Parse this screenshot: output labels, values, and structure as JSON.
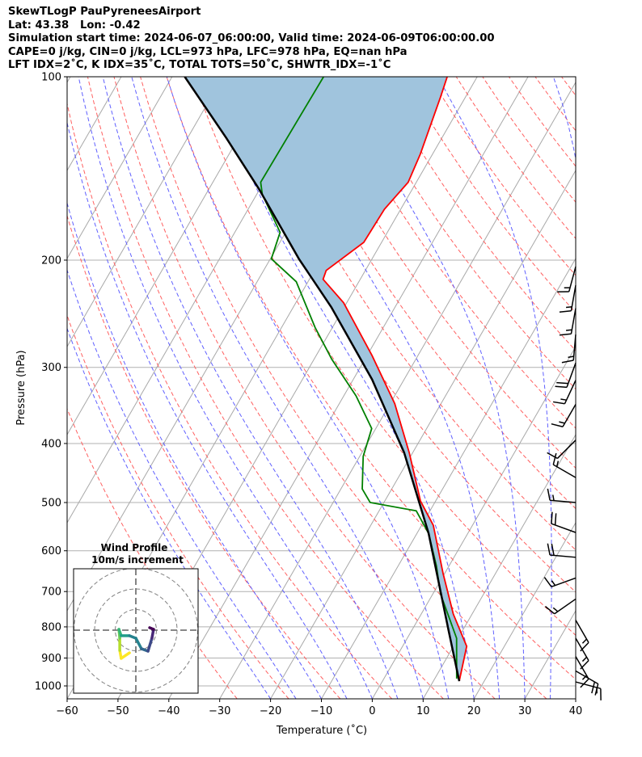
{
  "header": {
    "line1": "SkewTLogP PauPyreneesAirport",
    "line2": "Lat: 43.38   Lon: -0.42",
    "line3": "Simulation start time: 2024-06-07_06:00:00, Valid time: 2024-06-09T06:00:00.00",
    "line4": "CAPE=0 j/kg, CIN=0 j/kg, LCL=973 hPa, LFC=978 hPa, EQ=nan hPa",
    "line5": "LFT IDX=2˚C, K IDX=35˚C, TOTAL TOTS=50˚C, SHWTR_IDX=-1˚C"
  },
  "chart_data": {
    "type": "line",
    "title": "SkewTLogP PauPyreneesAirport",
    "xlabel": "Temperature (˚C)",
    "ylabel": "Pressure (hPa)",
    "xlim": [
      -60,
      40
    ],
    "ylim": [
      1050,
      100
    ],
    "xticks": [
      "−60",
      "−50",
      "−40",
      "−30",
      "−20",
      "−10",
      "0",
      "10",
      "20",
      "30",
      "40"
    ],
    "xtick_values": [
      -60,
      -50,
      -40,
      -30,
      -20,
      -10,
      0,
      10,
      20,
      30,
      40
    ],
    "yticks": [
      "100",
      "200",
      "300",
      "400",
      "500",
      "600",
      "700",
      "800",
      "900",
      "1000"
    ],
    "ytick_values": [
      100,
      200,
      300,
      400,
      500,
      600,
      700,
      800,
      900,
      1000
    ],
    "grid": true,
    "series": [
      {
        "name": "Temperature",
        "color": "#ff0000",
        "p": [
          982,
          861,
          762,
          654,
          545,
          497,
          414,
          344,
          287,
          235,
          215,
          208,
          187,
          165,
          149,
          134,
          108,
          100
        ],
        "t": [
          15.1,
          12.6,
          6.3,
          -0.3,
          -7.7,
          -13.0,
          -20.7,
          -29.1,
          -39.0,
          -50.6,
          -57.3,
          -57.7,
          -53.5,
          -53.2,
          -51.6,
          -52.4,
          -54.9,
          -55.9
        ]
      },
      {
        "name": "Dewpoint",
        "color": "#008000",
        "p": [
          973,
          835,
          706,
          635,
          562,
          516,
          500,
          475,
          420,
          378,
          334,
          291,
          258,
          217,
          199,
          180,
          156,
          149,
          100
        ],
        "t": [
          14.3,
          9.7,
          1.5,
          -2.5,
          -7.7,
          -12.7,
          -22.7,
          -25.8,
          -29.3,
          -30.8,
          -37.6,
          -46.5,
          -53.4,
          -62.3,
          -69.8,
          -71.1,
          -78.9,
          -80.6,
          -80.2
        ]
      },
      {
        "name": "Parcel",
        "color": "#000000",
        "p": [
          982,
          810,
          562,
          414,
          314,
          239,
          199,
          153,
          126,
          100
        ],
        "t": [
          15.1,
          7.2,
          -7.7,
          -21.7,
          -36.3,
          -52.5,
          -64.4,
          -80.1,
          -92.4,
          -107.5
        ]
      }
    ],
    "shading": {
      "between": [
        "Parcel",
        "Temperature"
      ],
      "color": "#a0c4dd"
    },
    "wind_barbs": [
      {
        "p": 205,
        "speed_kt": 15,
        "dir": 195
      },
      {
        "p": 220,
        "speed_kt": 15,
        "dir": 190
      },
      {
        "p": 240,
        "speed_kt": 15,
        "dir": 190
      },
      {
        "p": 265,
        "speed_kt": 15,
        "dir": 185
      },
      {
        "p": 295,
        "speed_kt": 20,
        "dir": 200
      },
      {
        "p": 315,
        "speed_kt": 15,
        "dir": 205
      },
      {
        "p": 345,
        "speed_kt": 15,
        "dir": 210
      },
      {
        "p": 395,
        "speed_kt": 10,
        "dir": 225
      },
      {
        "p": 455,
        "speed_kt": 15,
        "dir": 300
      },
      {
        "p": 500,
        "speed_kt": 15,
        "dir": 275
      },
      {
        "p": 560,
        "speed_kt": 20,
        "dir": 290
      },
      {
        "p": 615,
        "speed_kt": 20,
        "dir": 275
      },
      {
        "p": 665,
        "speed_kt": 15,
        "dir": 250
      },
      {
        "p": 720,
        "speed_kt": 15,
        "dir": 235
      },
      {
        "p": 780,
        "speed_kt": 15,
        "dir": 150
      },
      {
        "p": 835,
        "speed_kt": 15,
        "dir": 150
      },
      {
        "p": 895,
        "speed_kt": 15,
        "dir": 150
      },
      {
        "p": 945,
        "speed_kt": 20,
        "dir": 120
      },
      {
        "p": 985,
        "speed_kt": 15,
        "dir": 105
      }
    ],
    "hodograph": {
      "title": "Wind Profile",
      "subtitle": "10m/s increment",
      "rings_ms": [
        10,
        20,
        30
      ],
      "u": [
        -3.1,
        -7.1,
        -7.8,
        -7.8,
        -8.2,
        -7.1,
        -3.1,
        0,
        2.7,
        5.9,
        7.8,
        8.6,
        6.7
      ],
      "v": [
        -11.0,
        -13.7,
        -9.8,
        -3.9,
        0.4,
        -2.7,
        -2.7,
        -3.9,
        -9.0,
        -10.2,
        -3.9,
        0.4,
        1.2
      ]
    }
  }
}
